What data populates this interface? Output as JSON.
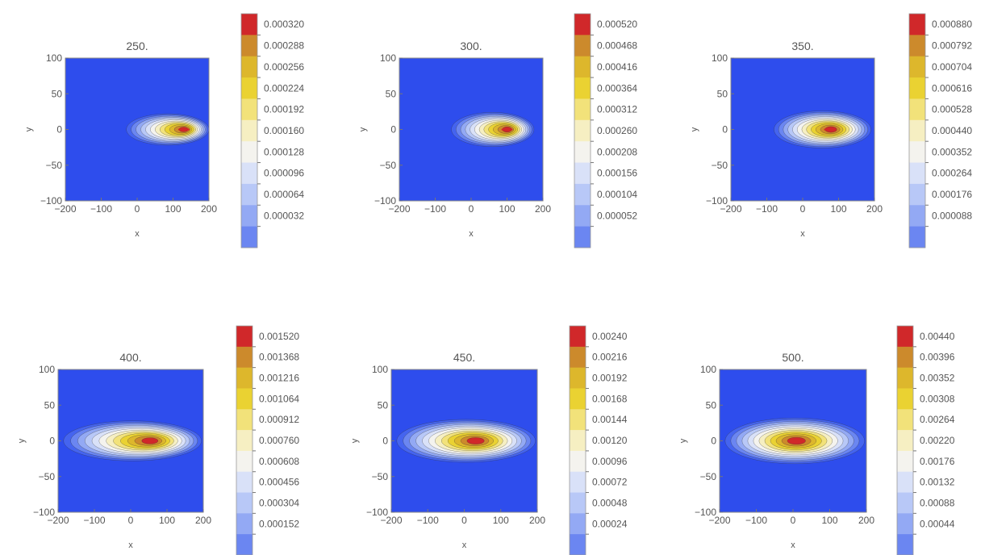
{
  "palette": [
    "#2e4ded",
    "#4564ef",
    "#6b86f1",
    "#93a9f4",
    "#b8c8f7",
    "#d9e1f8",
    "#f4f3ee",
    "#f6efc2",
    "#f2e27a",
    "#ead232",
    "#ddb72c",
    "#cc8a2c",
    "#d0282a"
  ],
  "chart_data": [
    {
      "type": "heatmap",
      "title": "250.",
      "xlabel": "x",
      "ylabel": "y",
      "xlim": [
        -200,
        200
      ],
      "ylim": [
        -100,
        100
      ],
      "xticks": [
        "−200",
        "−100",
        "0",
        "100",
        "200"
      ],
      "yticks": [
        "100",
        "50",
        "0",
        "−50",
        "−100"
      ],
      "colorbar": [
        "0.000320",
        "0.000288",
        "0.000256",
        "0.000224",
        "0.000192",
        "0.000160",
        "0.000128",
        "0.000096",
        "0.000064",
        "0.000032"
      ],
      "peak": [
        130,
        0
      ],
      "plume": {
        "x_start": -30,
        "x_end": 200,
        "half_width": 22
      }
    },
    {
      "type": "heatmap",
      "title": "300.",
      "xlabel": "x",
      "ylabel": "y",
      "xlim": [
        -200,
        200
      ],
      "ylim": [
        -100,
        100
      ],
      "xticks": [
        "−200",
        "−100",
        "0",
        "100",
        "200"
      ],
      "yticks": [
        "100",
        "50",
        "0",
        "−50",
        "−100"
      ],
      "colorbar": [
        "0.000520",
        "0.000468",
        "0.000416",
        "0.000364",
        "0.000312",
        "0.000260",
        "0.000208",
        "0.000156",
        "0.000104",
        "0.000052"
      ],
      "peak": [
        100,
        0
      ],
      "plume": {
        "x_start": -55,
        "x_end": 175,
        "half_width": 24
      }
    },
    {
      "type": "heatmap",
      "title": "350.",
      "xlabel": "x",
      "ylabel": "y",
      "xlim": [
        -200,
        200
      ],
      "ylim": [
        -100,
        100
      ],
      "xticks": [
        "−200",
        "−100",
        "0",
        "100",
        "200"
      ],
      "yticks": [
        "100",
        "50",
        "0",
        "−50",
        "−100"
      ],
      "colorbar": [
        "0.000880",
        "0.000792",
        "0.000704",
        "0.000616",
        "0.000528",
        "0.000440",
        "0.000352",
        "0.000264",
        "0.000176",
        "0.000088"
      ],
      "peak": [
        75,
        0
      ],
      "plume": {
        "x_start": -80,
        "x_end": 190,
        "half_width": 26
      }
    },
    {
      "type": "heatmap",
      "title": "400.",
      "xlabel": "x",
      "ylabel": "y",
      "xlim": [
        -200,
        200
      ],
      "ylim": [
        -100,
        100
      ],
      "xticks": [
        "−200",
        "−100",
        "0",
        "100",
        "200"
      ],
      "yticks": [
        "100",
        "50",
        "0",
        "−50",
        "−100"
      ],
      "colorbar": [
        "0.001520",
        "0.001368",
        "0.001216",
        "0.001064",
        "0.000912",
        "0.000760",
        "0.000608",
        "0.000456",
        "0.000304",
        "0.000152"
      ],
      "peak": [
        50,
        0
      ],
      "plume": {
        "x_start": -185,
        "x_end": 195,
        "half_width": 28
      }
    },
    {
      "type": "heatmap",
      "title": "450.",
      "xlabel": "x",
      "ylabel": "y",
      "xlim": [
        -200,
        200
      ],
      "ylim": [
        -100,
        100
      ],
      "xticks": [
        "−200",
        "−100",
        "0",
        "100",
        "200"
      ],
      "yticks": [
        "100",
        "50",
        "0",
        "−50",
        "−100"
      ],
      "colorbar": [
        "0.00240",
        "0.00216",
        "0.00192",
        "0.00168",
        "0.00144",
        "0.00120",
        "0.00096",
        "0.00072",
        "0.00048",
        "0.00024"
      ],
      "peak": [
        25,
        0
      ],
      "plume": {
        "x_start": -185,
        "x_end": 195,
        "half_width": 30
      }
    },
    {
      "type": "heatmap",
      "title": "500.",
      "xlabel": "x",
      "ylabel": "y",
      "xlim": [
        -200,
        200
      ],
      "ylim": [
        -100,
        100
      ],
      "xticks": [
        "−200",
        "−100",
        "0",
        "100",
        "200"
      ],
      "yticks": [
        "100",
        "50",
        "0",
        "−50",
        "−100"
      ],
      "colorbar": [
        "0.00440",
        "0.00396",
        "0.00352",
        "0.00308",
        "0.00264",
        "0.00220",
        "0.00176",
        "0.00132",
        "0.00088",
        "0.00044"
      ],
      "peak": [
        0,
        0
      ],
      "plume": {
        "x_start": -185,
        "x_end": 195,
        "half_width": 32
      }
    }
  ]
}
